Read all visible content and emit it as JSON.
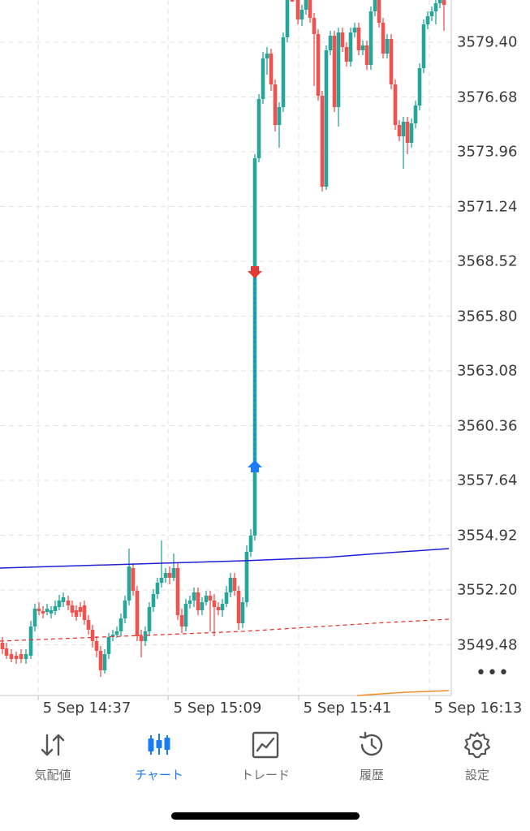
{
  "chart": {
    "price_labels": [
      "3579.40",
      "3576.68",
      "3573.96",
      "3571.24",
      "3568.52",
      "3565.80",
      "3563.08",
      "3560.36",
      "3557.64",
      "3554.92",
      "3552.20",
      "3549.48"
    ],
    "time_labels": [
      "5 Sep 14:37",
      "5 Sep 15:09",
      "5 Sep 15:41",
      "5 Sep 16:13"
    ],
    "colors": {
      "bull": "#26a69a",
      "bear": "#ef5350",
      "ma_blue": "#1f1fd6",
      "ma_red_dashed": "#e53935",
      "ma_orange": "#f28c28",
      "trade_line": "#1a7cf5",
      "buy_arrow": "#1a7cf5",
      "sell_arrow": "#e53935",
      "grid": "#e2e2e2"
    },
    "more_label": "•••"
  },
  "tabs": [
    {
      "label": "気配値",
      "icon": "quotes-arrows-icon",
      "active": false
    },
    {
      "label": "チャート",
      "icon": "candlestick-chart-icon",
      "active": true
    },
    {
      "label": "トレード",
      "icon": "trade-chart-icon",
      "active": false
    },
    {
      "label": "履歴",
      "icon": "history-clock-icon",
      "active": false
    },
    {
      "label": "設定",
      "icon": "settings-gear-icon",
      "active": false
    }
  ]
}
